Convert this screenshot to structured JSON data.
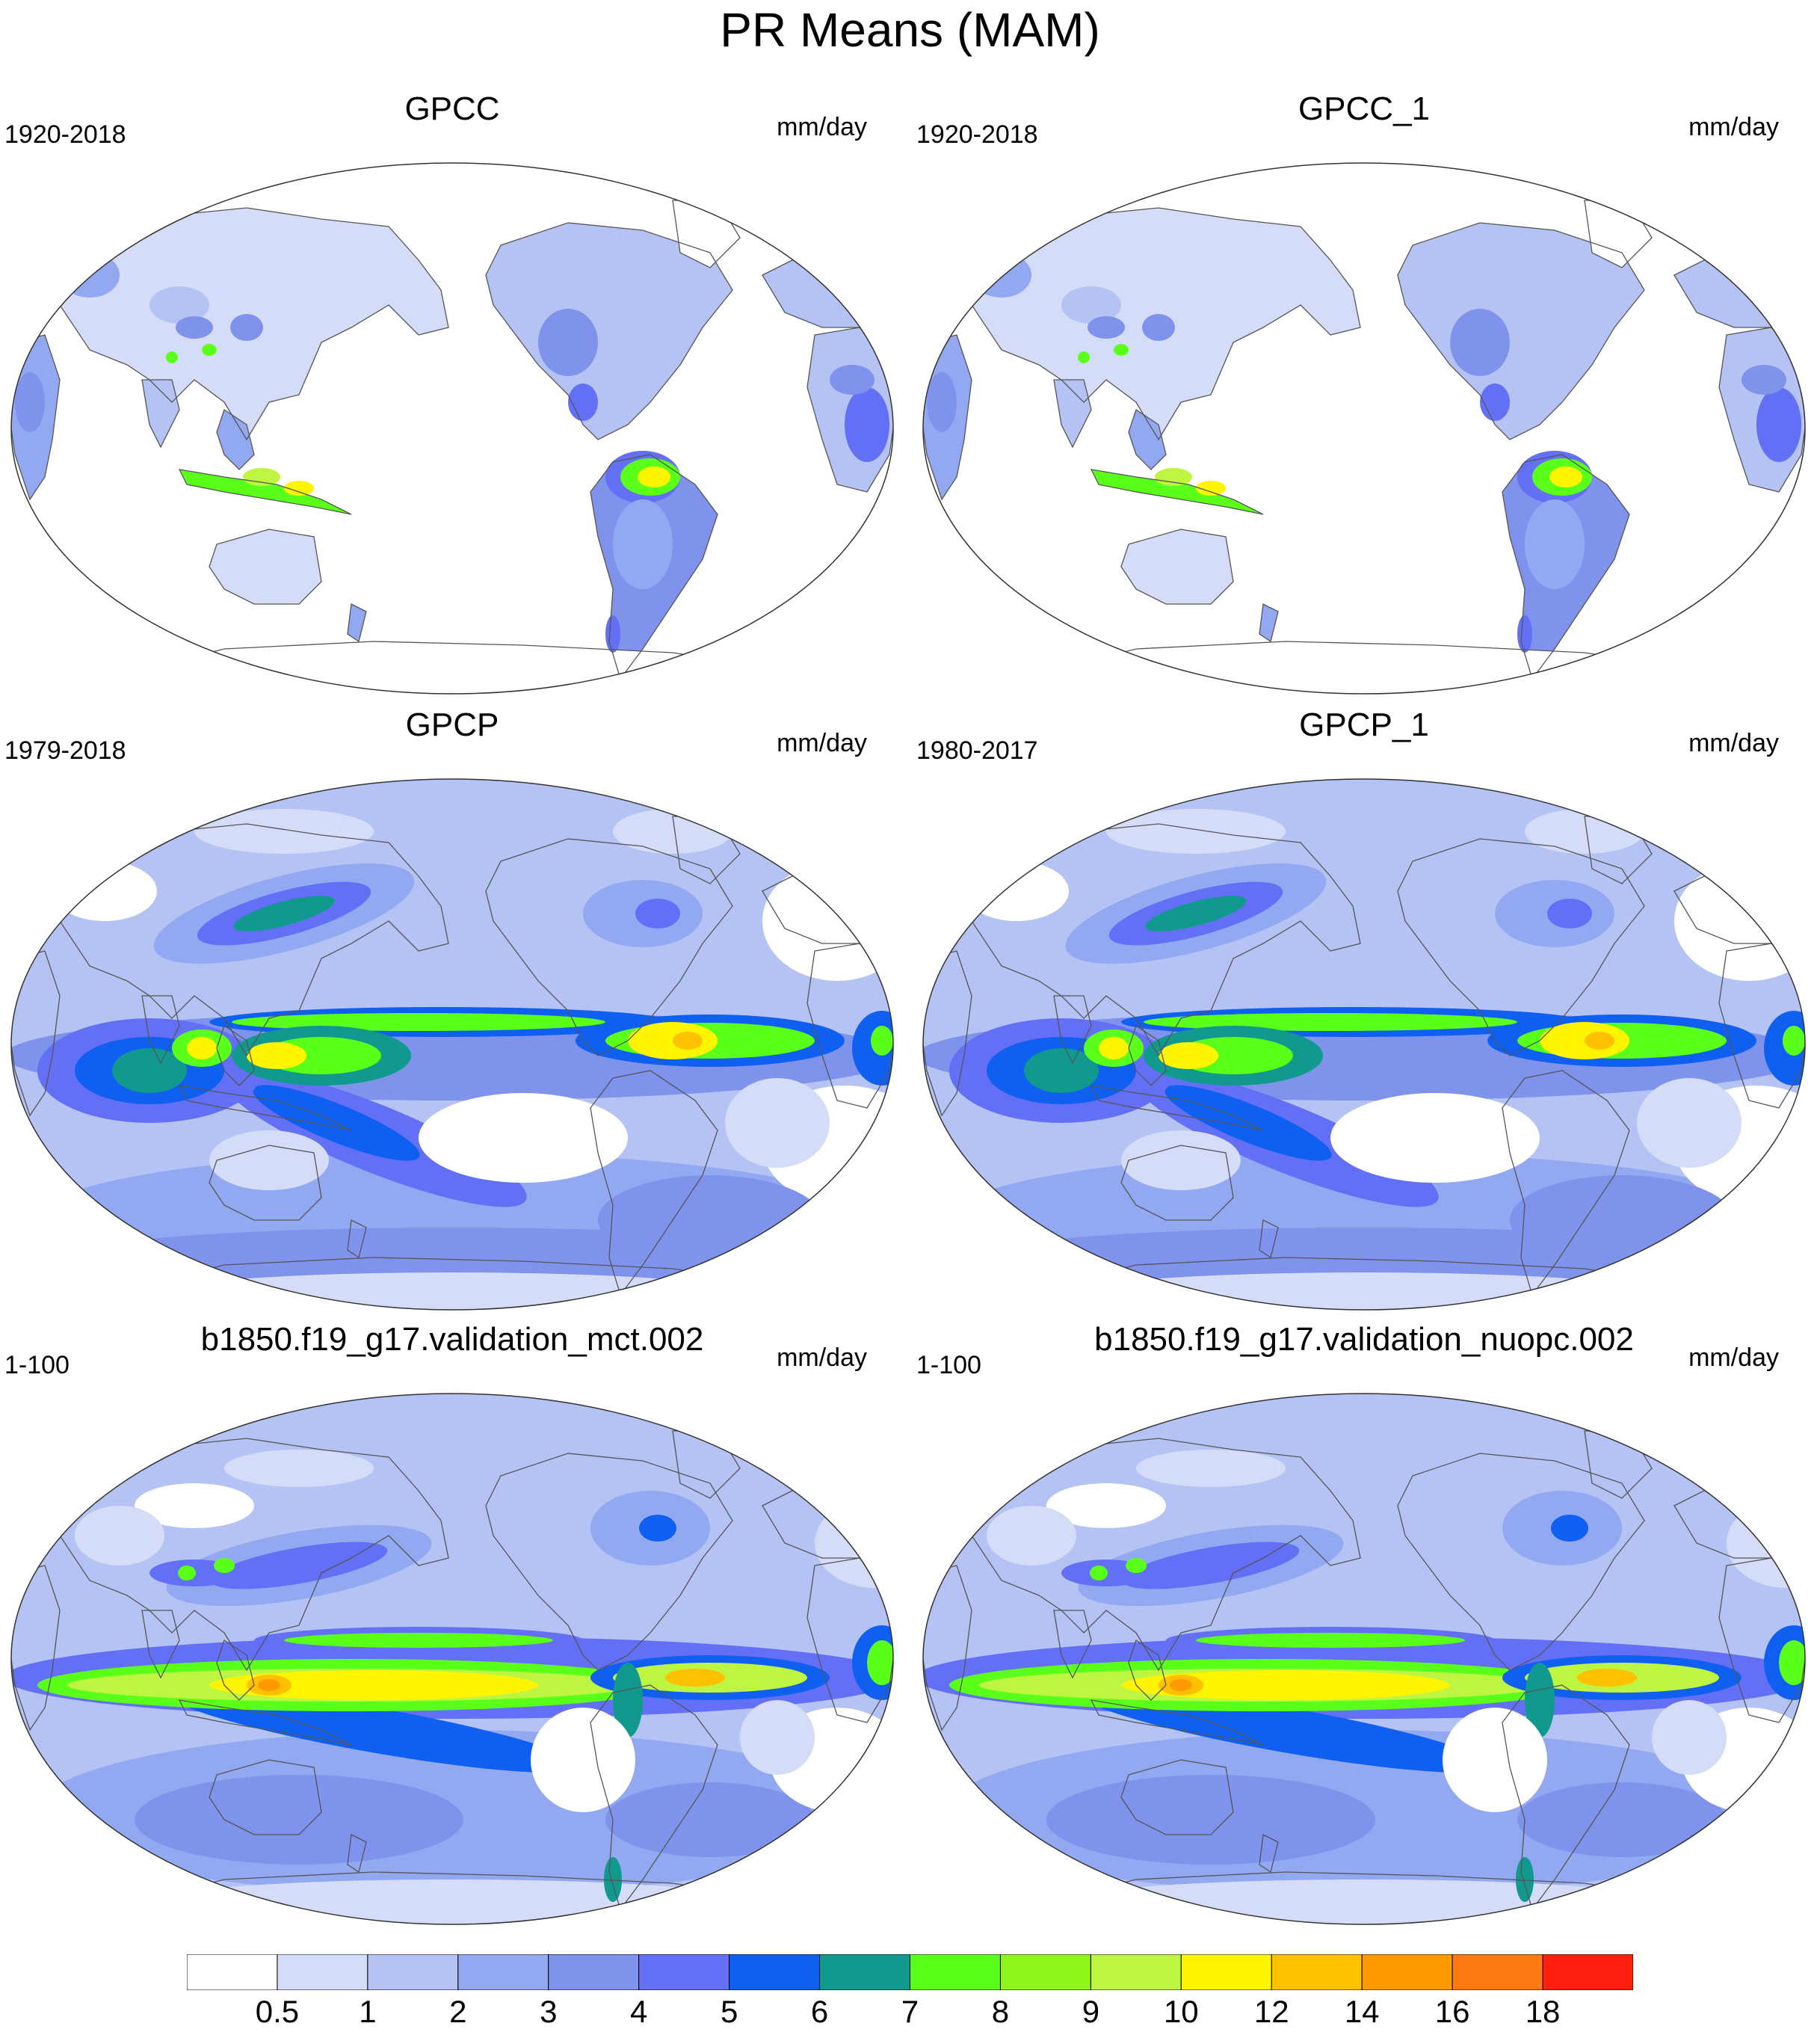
{
  "title": "PR Means (MAM)",
  "panels": [
    {
      "title": "GPCC",
      "period": "1920-2018",
      "units": "mm/day",
      "kind": "landonly"
    },
    {
      "title": "GPCC_1",
      "period": "1920-2018",
      "units": "mm/day",
      "kind": "landonly"
    },
    {
      "title": "GPCP",
      "period": "1979-2018",
      "units": "mm/day",
      "kind": "obs"
    },
    {
      "title": "GPCP_1",
      "period": "1980-2017",
      "units": "mm/day",
      "kind": "obs"
    },
    {
      "title": "b1850.f19_g17.validation_mct.002",
      "period": "1-100",
      "units": "mm/day",
      "kind": "model"
    },
    {
      "title": "b1850.f19_g17.validation_nuopc.002",
      "period": "1-100",
      "units": "mm/day",
      "kind": "model"
    }
  ],
  "colorbar": {
    "labels": [
      "0.5",
      "1",
      "2",
      "3",
      "4",
      "5",
      "6",
      "7",
      "8",
      "9",
      "10",
      "12",
      "14",
      "16",
      "18"
    ],
    "colors": [
      "#ffffff",
      "#d5dcf7",
      "#b5c3f4",
      "#92a9f2",
      "#7f92ec",
      "#6370f5",
      "#0f5ff0",
      "#11998e",
      "#5aff1a",
      "#8ff51a",
      "#bef542",
      "#fff500",
      "#ffc000",
      "#ff9900",
      "#ff7a10",
      "#ff2010"
    ]
  }
}
